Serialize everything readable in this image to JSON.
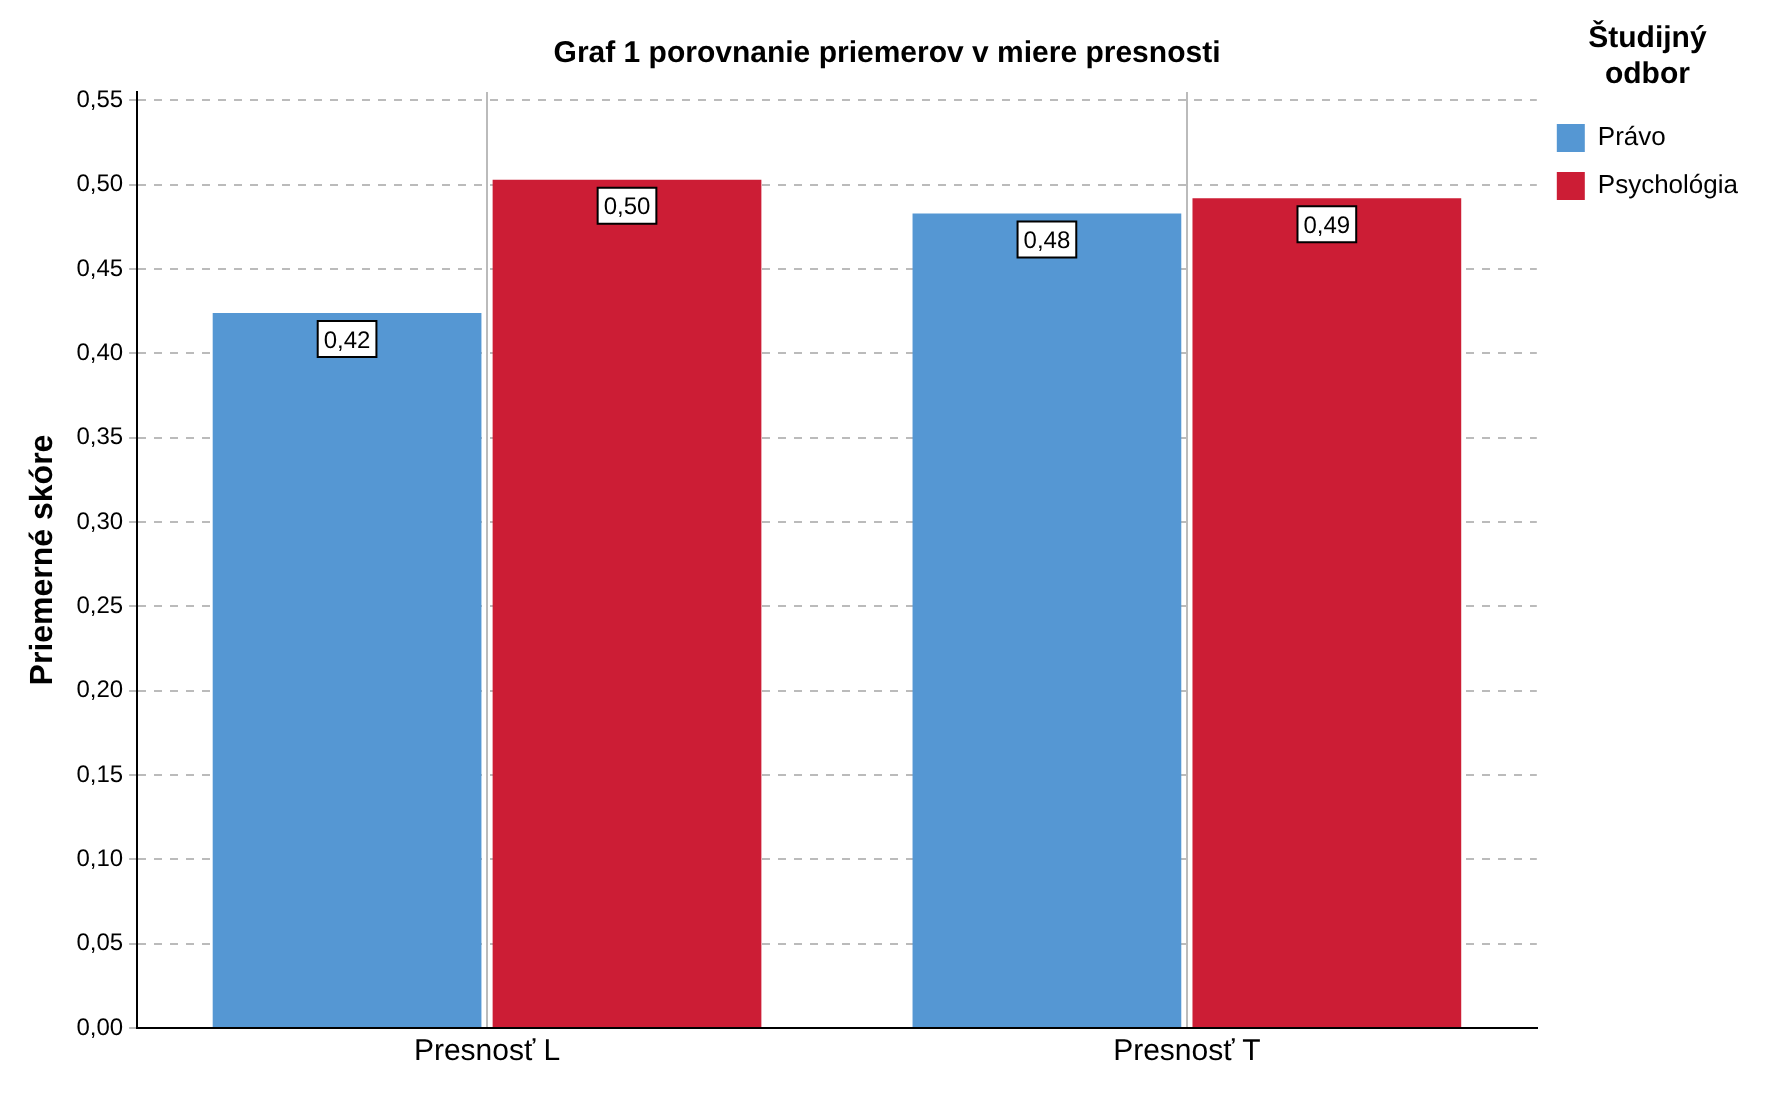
{
  "chart_data": {
    "type": "bar",
    "title": "Graf 1 porovnanie priemerov v miere presnosti",
    "ylabel": "Priemerné skóre",
    "legend_title": "Študijný odbor",
    "categories": [
      "Presnosť L",
      "Presnosť T"
    ],
    "series": [
      {
        "name": "Právo",
        "color": "#5597d3",
        "values": [
          0.424,
          0.483
        ],
        "value_labels": [
          "0,42",
          "0,48"
        ]
      },
      {
        "name": "Psychológia",
        "color": "#cc1d35",
        "values": [
          0.503,
          0.492
        ],
        "value_labels": [
          "0,50",
          "0,49"
        ]
      }
    ],
    "ylim": [
      0,
      0.555
    ],
    "yticks": [
      {
        "value": 0,
        "label": "0,00"
      },
      {
        "value": 0.05,
        "label": "0,05"
      },
      {
        "value": 0.1,
        "label": "0,10"
      },
      {
        "value": 0.15,
        "label": "0,15"
      },
      {
        "value": 0.2,
        "label": "0,20"
      },
      {
        "value": 0.25,
        "label": "0,25"
      },
      {
        "value": 0.3,
        "label": "0,30"
      },
      {
        "value": 0.35,
        "label": "0,35"
      },
      {
        "value": 0.4,
        "label": "0,40"
      },
      {
        "value": 0.45,
        "label": "0,45"
      },
      {
        "value": 0.5,
        "label": "0,50"
      },
      {
        "value": 0.55,
        "label": "0,55"
      }
    ],
    "grid": true,
    "legend": "top right"
  }
}
